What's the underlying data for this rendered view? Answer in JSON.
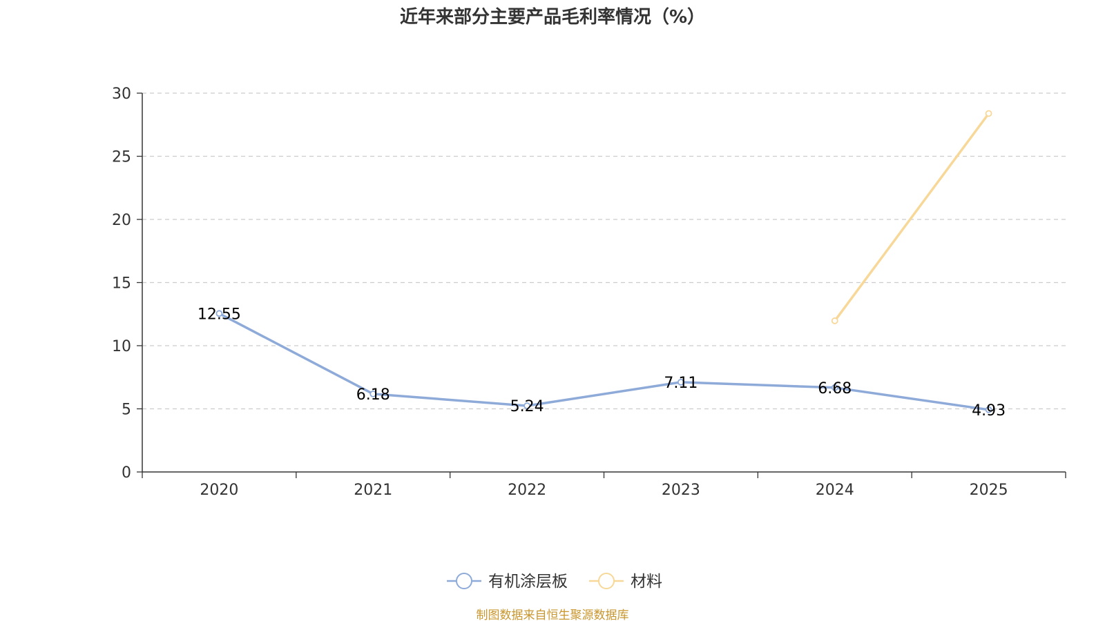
{
  "chart_data": {
    "type": "line",
    "title": "近年来部分主要产品毛利率情况（%）",
    "categories": [
      "2020",
      "2021",
      "2022",
      "2023",
      "2024",
      "2025"
    ],
    "ylim": [
      0,
      30
    ],
    "yticks": [
      0,
      5,
      10,
      15,
      20,
      25,
      30
    ],
    "grid": true,
    "legend_position": "bottom-center",
    "series": [
      {
        "name": "有机涂层板",
        "color": "#8eaad8",
        "values": [
          12.55,
          6.18,
          5.24,
          7.11,
          6.68,
          4.93
        ],
        "labels": [
          "12.55",
          "6.18",
          "5.24",
          "7.11",
          "6.68",
          "4.93"
        ],
        "show_labels": true
      },
      {
        "name": "材料",
        "color": "#f7d898",
        "values": [
          null,
          null,
          null,
          null,
          11.97,
          28.39
        ],
        "show_labels": false
      }
    ]
  },
  "source": {
    "text": "制图数据来自恒生聚源数据库",
    "color": "#c9962e"
  }
}
